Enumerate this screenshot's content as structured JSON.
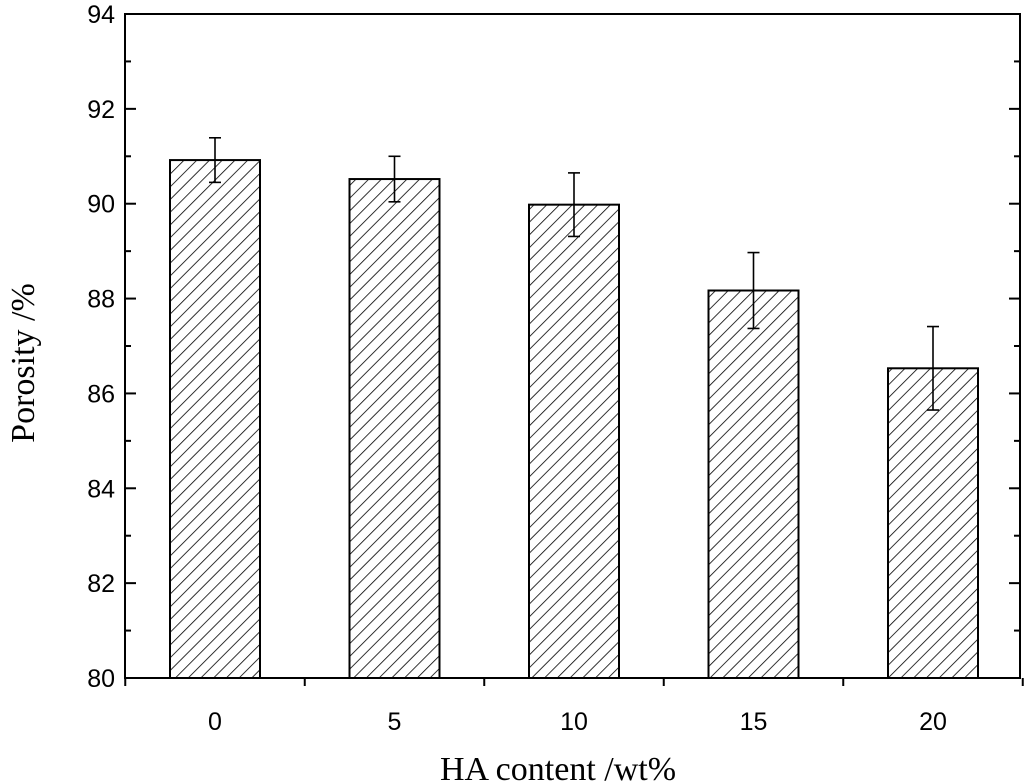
{
  "chart_data": {
    "type": "bar",
    "xlabel": "HA content /wt%",
    "ylabel": "Porosity /%",
    "categories": [
      "0",
      "5",
      "10",
      "15",
      "20"
    ],
    "values": [
      90.92,
      90.52,
      89.98,
      88.17,
      86.53
    ],
    "errors": [
      0.47,
      0.48,
      0.67,
      0.8,
      0.88
    ],
    "ylim": [
      80,
      94
    ],
    "yticks": [
      "80",
      "82",
      "84",
      "86",
      "88",
      "90",
      "92",
      "94"
    ],
    "bar_fill": "diagonal hatch",
    "grid": false,
    "legend": "none"
  }
}
